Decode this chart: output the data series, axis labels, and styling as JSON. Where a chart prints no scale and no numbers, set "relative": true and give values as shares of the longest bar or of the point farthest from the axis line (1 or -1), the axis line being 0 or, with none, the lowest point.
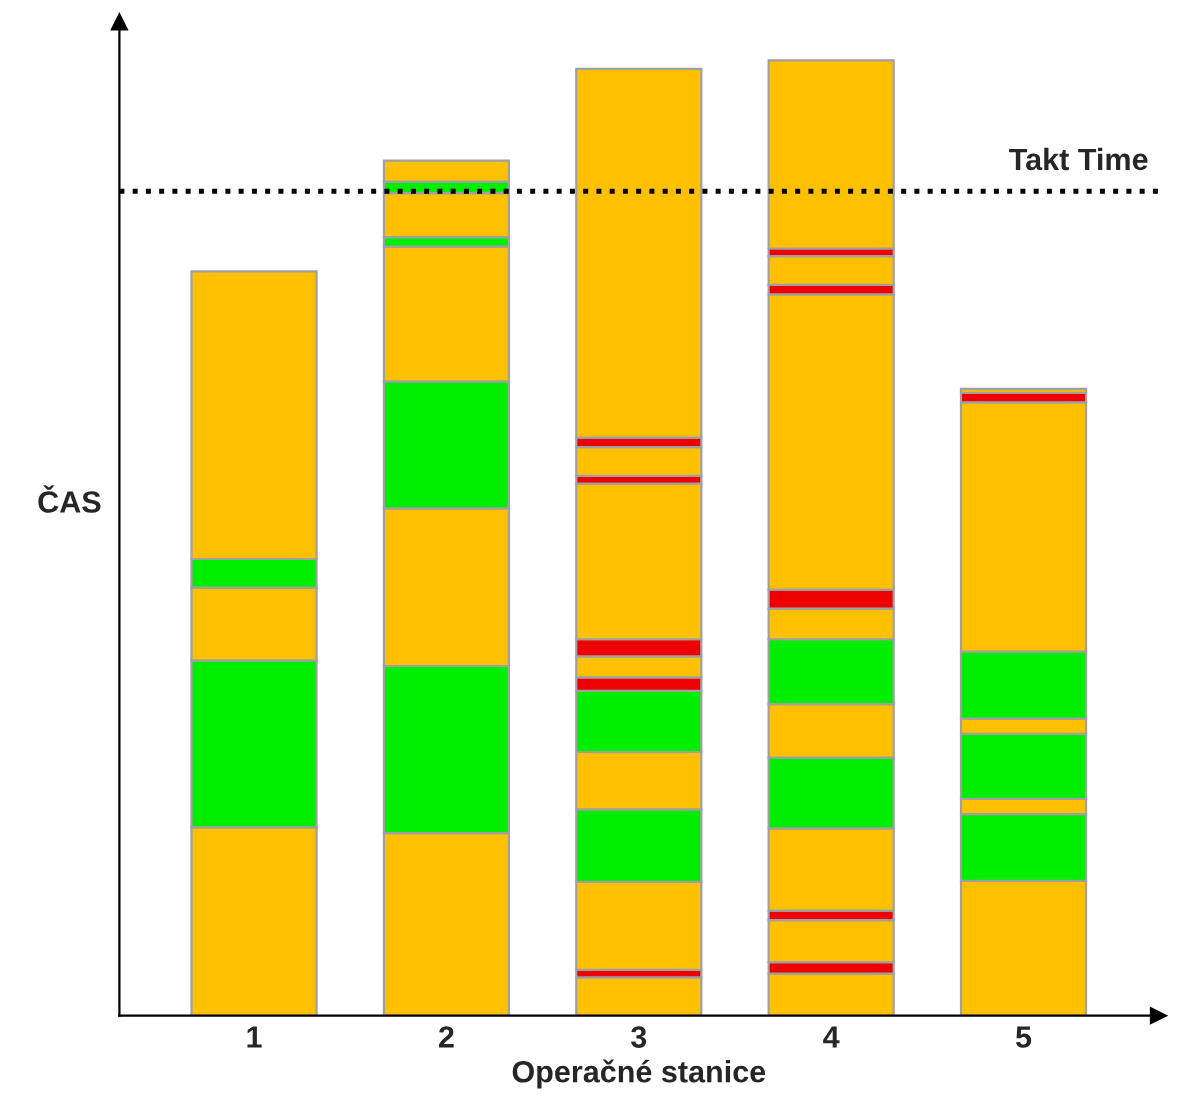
{
  "chart_data": {
    "type": "bar",
    "stacked": true,
    "relative": true,
    "xlabel": "Operačné stanice",
    "ylabel": "ČAS",
    "categories": [
      "1",
      "2",
      "3",
      "4",
      "5"
    ],
    "series": [
      {
        "values": [
          0.197,
          0.191,
          0.04,
          0.044,
          0.141
        ],
        "colors": [
          "#ffc000",
          "#ffc000",
          "#ffc000",
          "#ffc000",
          "#ffc000"
        ]
      },
      {
        "values": [
          0.175,
          0.175,
          0.008,
          0.012,
          0.07
        ],
        "colors": [
          "#00ee00",
          "#00ee00",
          "#ee0000",
          "#ee0000",
          "#00ee00"
        ]
      },
      {
        "values": [
          0.076,
          0.165,
          0.092,
          0.044,
          0.016
        ],
        "colors": [
          "#ffc000",
          "#ffc000",
          "#ffc000",
          "#ffc000",
          "#ffc000"
        ]
      },
      {
        "values": [
          0.03,
          0.133,
          0.076,
          0.01,
          0.068
        ],
        "colors": [
          "#00ee00",
          "#00ee00",
          "#00ee00",
          "#ee0000",
          "#00ee00"
        ]
      },
      {
        "values": [
          0.301,
          0.141,
          0.06,
          0.086,
          0.016
        ],
        "colors": [
          "#ffc000",
          "#ffc000",
          "#ffc000",
          "#ffc000",
          "#ffc000"
        ]
      },
      {
        "values": [
          null,
          0.01,
          0.064,
          0.074,
          0.07
        ],
        "colors": [
          null,
          "#00ee00",
          "#00ee00",
          "#00ee00",
          "#00ee00"
        ]
      },
      {
        "values": [
          null,
          0.046,
          0.014,
          0.056,
          0.261
        ],
        "colors": [
          null,
          "#ffc000",
          "#ee0000",
          "#ffc000",
          "#ffc000"
        ]
      },
      {
        "values": [
          null,
          0.012,
          0.022,
          0.068,
          0.01
        ],
        "colors": [
          null,
          "#00ee00",
          "#ffc000",
          "#00ee00",
          "#ee0000"
        ]
      },
      {
        "values": [
          null,
          0.022,
          0.018,
          0.032,
          0.004
        ],
        "colors": [
          null,
          "#ffc000",
          "#ee0000",
          "#ffc000",
          "#ffc000"
        ]
      },
      {
        "values": [
          null,
          null,
          0.163,
          0.02,
          null
        ],
        "colors": [
          null,
          null,
          "#ffc000",
          "#ee0000",
          null
        ]
      },
      {
        "values": [
          null,
          null,
          0.008,
          0.309,
          null
        ],
        "colors": [
          null,
          null,
          "#ee0000",
          "#ffc000",
          null
        ]
      },
      {
        "values": [
          null,
          null,
          0.03,
          0.01,
          null
        ],
        "colors": [
          null,
          null,
          "#ffc000",
          "#ee0000",
          null
        ]
      },
      {
        "values": [
          null,
          null,
          0.01,
          0.03,
          null
        ],
        "colors": [
          null,
          null,
          "#ee0000",
          "#ffc000",
          null
        ]
      },
      {
        "values": [
          null,
          null,
          0.386,
          0.008,
          null
        ],
        "colors": [
          null,
          null,
          "#ffc000",
          "#ee0000",
          null
        ]
      },
      {
        "values": [
          null,
          null,
          null,
          0.197,
          null
        ],
        "colors": [
          null,
          null,
          null,
          "#ffc000",
          null
        ]
      }
    ],
    "ref_lines": [
      {
        "axis": "y",
        "value": 0.863,
        "label": "Takt Time",
        "color": "#000000",
        "line_style": "dotted"
      }
    ],
    "grid": false,
    "legend": false
  }
}
